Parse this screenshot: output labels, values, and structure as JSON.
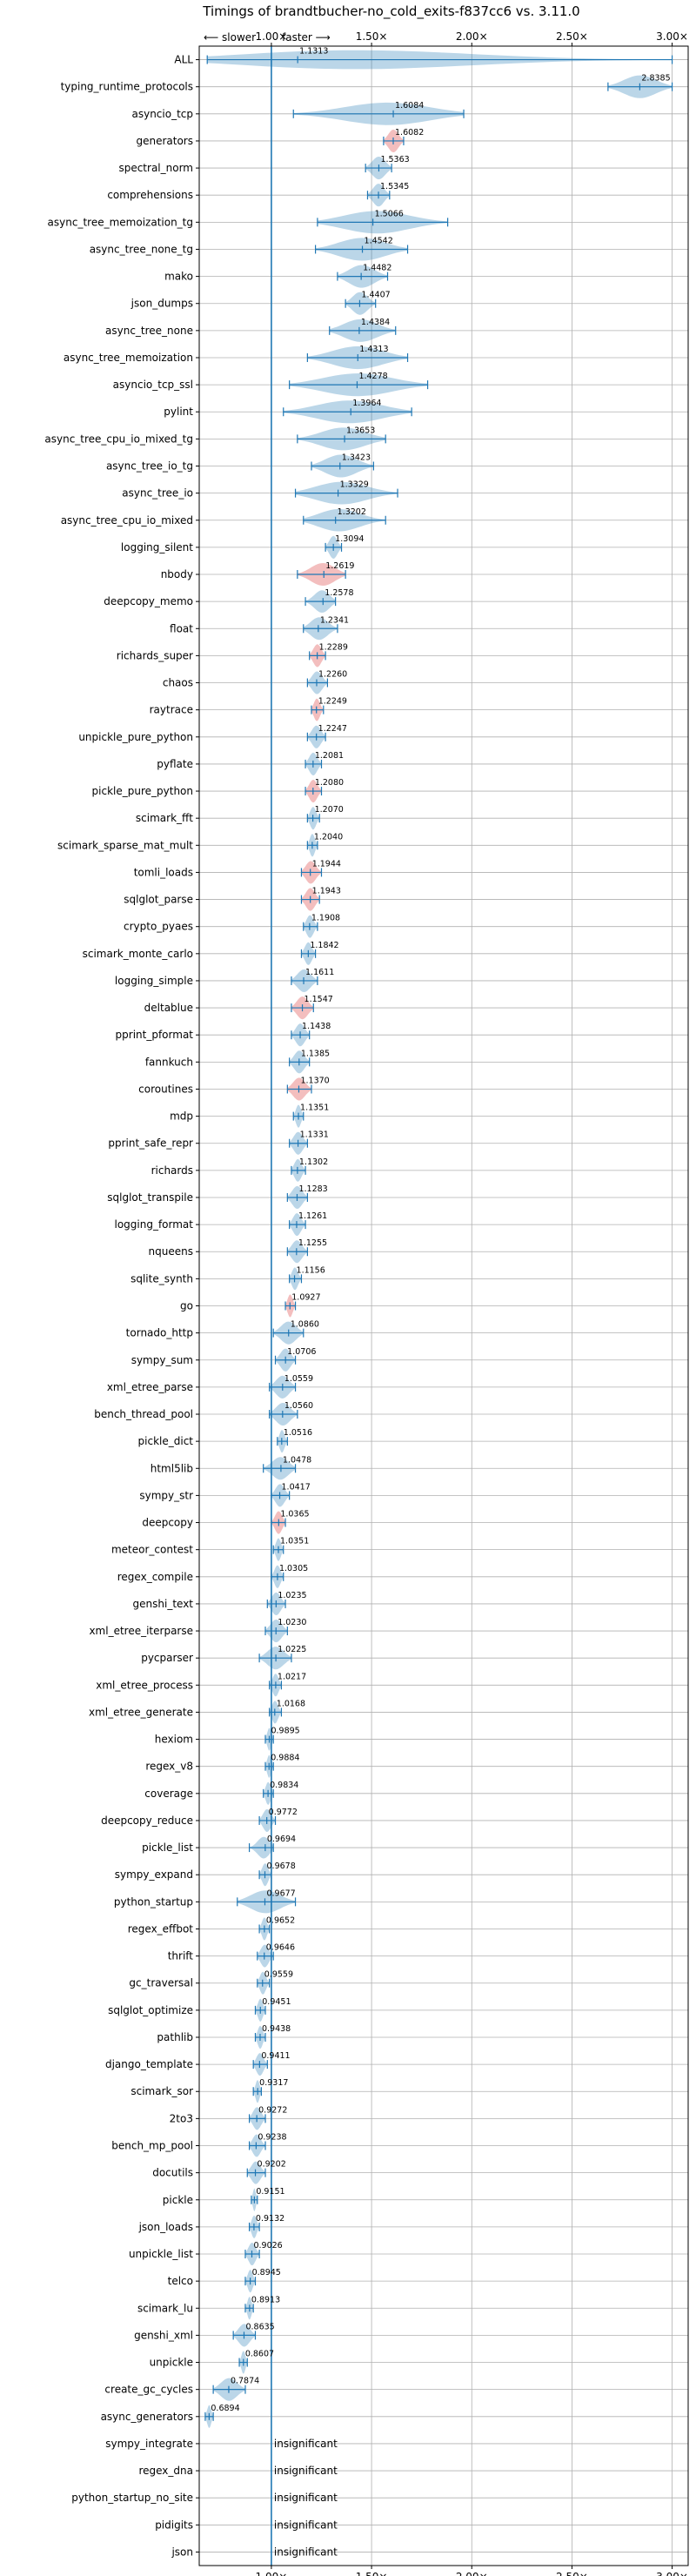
{
  "chart_data": {
    "type": "violin",
    "title": "Timings of brandtbucher-no_cold_exits-f837cc6 vs. 3.11.0",
    "direction_slower": "⟵ slower",
    "direction_faster": "faster ⟶",
    "xlim": [
      0.64,
      3.08
    ],
    "xticks": [
      1.0,
      1.5,
      2.0,
      2.5,
      3.0
    ],
    "xtick_labels": [
      "1.00×",
      "1.50×",
      "2.00×",
      "2.50×",
      "3.00×"
    ],
    "reference_line": 1.0,
    "grid": true,
    "colors": {
      "faster": "#1f77b4",
      "slower": "#d62728",
      "axis": "#000000",
      "grid": "#b0b0b0"
    },
    "insignificant_label": "insignificant",
    "benchmarks": [
      {
        "name": "ALL",
        "value": 1.1313,
        "min": 0.68,
        "max": 3.0,
        "label": "1.1313",
        "slower": false
      },
      {
        "name": "typing_runtime_protocols",
        "value": 2.8385,
        "min": 2.68,
        "max": 3.0,
        "label": "2.8385",
        "slower": false
      },
      {
        "name": "asyncio_tcp",
        "value": 1.6084,
        "min": 1.11,
        "max": 1.96,
        "label": "1.6084",
        "slower": false
      },
      {
        "name": "generators",
        "value": 1.6082,
        "min": 1.56,
        "max": 1.66,
        "label": "1.6082",
        "slower": true
      },
      {
        "name": "spectral_norm",
        "value": 1.5363,
        "min": 1.47,
        "max": 1.6,
        "label": "1.5363",
        "slower": false
      },
      {
        "name": "comprehensions",
        "value": 1.5345,
        "min": 1.48,
        "max": 1.59,
        "label": "1.5345",
        "slower": false
      },
      {
        "name": "async_tree_memoization_tg",
        "value": 1.5066,
        "min": 1.23,
        "max": 1.88,
        "label": "1.5066",
        "slower": false
      },
      {
        "name": "async_tree_none_tg",
        "value": 1.4542,
        "min": 1.22,
        "max": 1.68,
        "label": "1.4542",
        "slower": false
      },
      {
        "name": "mako",
        "value": 1.4482,
        "min": 1.33,
        "max": 1.58,
        "label": "1.4482",
        "slower": false
      },
      {
        "name": "json_dumps",
        "value": 1.4407,
        "min": 1.37,
        "max": 1.52,
        "label": "1.4407",
        "slower": false
      },
      {
        "name": "async_tree_none",
        "value": 1.4384,
        "min": 1.29,
        "max": 1.62,
        "label": "1.4384",
        "slower": false
      },
      {
        "name": "async_tree_memoization",
        "value": 1.4313,
        "min": 1.18,
        "max": 1.68,
        "label": "1.4313",
        "slower": false
      },
      {
        "name": "asyncio_tcp_ssl",
        "value": 1.4278,
        "min": 1.09,
        "max": 1.78,
        "label": "1.4278",
        "slower": false
      },
      {
        "name": "pylint",
        "value": 1.3964,
        "min": 1.06,
        "max": 1.7,
        "label": "1.3964",
        "slower": false
      },
      {
        "name": "async_tree_cpu_io_mixed_tg",
        "value": 1.3653,
        "min": 1.13,
        "max": 1.57,
        "label": "1.3653",
        "slower": false
      },
      {
        "name": "async_tree_io_tg",
        "value": 1.3423,
        "min": 1.2,
        "max": 1.51,
        "label": "1.3423",
        "slower": false
      },
      {
        "name": "async_tree_io",
        "value": 1.3329,
        "min": 1.12,
        "max": 1.63,
        "label": "1.3329",
        "slower": false
      },
      {
        "name": "async_tree_cpu_io_mixed",
        "value": 1.3202,
        "min": 1.16,
        "max": 1.57,
        "label": "1.3202",
        "slower": false
      },
      {
        "name": "logging_silent",
        "value": 1.3094,
        "min": 1.27,
        "max": 1.35,
        "label": "1.3094",
        "slower": false
      },
      {
        "name": "nbody",
        "value": 1.2619,
        "min": 1.13,
        "max": 1.37,
        "label": "1.2619",
        "slower": true
      },
      {
        "name": "deepcopy_memo",
        "value": 1.2578,
        "min": 1.17,
        "max": 1.32,
        "label": "1.2578",
        "slower": false
      },
      {
        "name": "float",
        "value": 1.2341,
        "min": 1.16,
        "max": 1.33,
        "label": "1.2341",
        "slower": false
      },
      {
        "name": "richards_super",
        "value": 1.2289,
        "min": 1.19,
        "max": 1.27,
        "label": "1.2289",
        "slower": true
      },
      {
        "name": "chaos",
        "value": 1.226,
        "min": 1.18,
        "max": 1.28,
        "label": "1.2260",
        "slower": false
      },
      {
        "name": "raytrace",
        "value": 1.2249,
        "min": 1.2,
        "max": 1.26,
        "label": "1.2249",
        "slower": true
      },
      {
        "name": "unpickle_pure_python",
        "value": 1.2247,
        "min": 1.18,
        "max": 1.27,
        "label": "1.2247",
        "slower": false
      },
      {
        "name": "pyflate",
        "value": 1.2081,
        "min": 1.17,
        "max": 1.25,
        "label": "1.2081",
        "slower": false
      },
      {
        "name": "pickle_pure_python",
        "value": 1.208,
        "min": 1.17,
        "max": 1.25,
        "label": "1.2080",
        "slower": true
      },
      {
        "name": "scimark_fft",
        "value": 1.207,
        "min": 1.18,
        "max": 1.24,
        "label": "1.2070",
        "slower": false
      },
      {
        "name": "scimark_sparse_mat_mult",
        "value": 1.204,
        "min": 1.18,
        "max": 1.23,
        "label": "1.2040",
        "slower": false
      },
      {
        "name": "tomli_loads",
        "value": 1.1944,
        "min": 1.15,
        "max": 1.25,
        "label": "1.1944",
        "slower": true
      },
      {
        "name": "sqlglot_parse",
        "value": 1.1943,
        "min": 1.15,
        "max": 1.24,
        "label": "1.1943",
        "slower": true
      },
      {
        "name": "crypto_pyaes",
        "value": 1.1908,
        "min": 1.16,
        "max": 1.23,
        "label": "1.1908",
        "slower": false
      },
      {
        "name": "scimark_monte_carlo",
        "value": 1.1842,
        "min": 1.15,
        "max": 1.22,
        "label": "1.1842",
        "slower": false
      },
      {
        "name": "logging_simple",
        "value": 1.1611,
        "min": 1.1,
        "max": 1.23,
        "label": "1.1611",
        "slower": false
      },
      {
        "name": "deltablue",
        "value": 1.1547,
        "min": 1.1,
        "max": 1.21,
        "label": "1.1547",
        "slower": true
      },
      {
        "name": "pprint_pformat",
        "value": 1.1438,
        "min": 1.1,
        "max": 1.19,
        "label": "1.1438",
        "slower": false
      },
      {
        "name": "fannkuch",
        "value": 1.1385,
        "min": 1.09,
        "max": 1.19,
        "label": "1.1385",
        "slower": false
      },
      {
        "name": "coroutines",
        "value": 1.137,
        "min": 1.08,
        "max": 1.2,
        "label": "1.1370",
        "slower": true
      },
      {
        "name": "mdp",
        "value": 1.1351,
        "min": 1.11,
        "max": 1.16,
        "label": "1.1351",
        "slower": false
      },
      {
        "name": "pprint_safe_repr",
        "value": 1.1331,
        "min": 1.09,
        "max": 1.18,
        "label": "1.1331",
        "slower": false
      },
      {
        "name": "richards",
        "value": 1.1302,
        "min": 1.1,
        "max": 1.17,
        "label": "1.1302",
        "slower": false
      },
      {
        "name": "sqlglot_transpile",
        "value": 1.1283,
        "min": 1.08,
        "max": 1.18,
        "label": "1.1283",
        "slower": false
      },
      {
        "name": "logging_format",
        "value": 1.1261,
        "min": 1.09,
        "max": 1.17,
        "label": "1.1261",
        "slower": false
      },
      {
        "name": "nqueens",
        "value": 1.1255,
        "min": 1.08,
        "max": 1.18,
        "label": "1.1255",
        "slower": false
      },
      {
        "name": "sqlite_synth",
        "value": 1.1156,
        "min": 1.09,
        "max": 1.15,
        "label": "1.1156",
        "slower": false
      },
      {
        "name": "go",
        "value": 1.0927,
        "min": 1.07,
        "max": 1.12,
        "label": "1.0927",
        "slower": true
      },
      {
        "name": "tornado_http",
        "value": 1.086,
        "min": 1.01,
        "max": 1.16,
        "label": "1.0860",
        "slower": false
      },
      {
        "name": "sympy_sum",
        "value": 1.0706,
        "min": 1.02,
        "max": 1.12,
        "label": "1.0706",
        "slower": false
      },
      {
        "name": "xml_etree_parse",
        "value": 1.0559,
        "min": 0.99,
        "max": 1.12,
        "label": "1.0559",
        "slower": false
      },
      {
        "name": "bench_thread_pool",
        "value": 1.056,
        "min": 0.99,
        "max": 1.13,
        "label": "1.0560",
        "slower": false
      },
      {
        "name": "pickle_dict",
        "value": 1.0516,
        "min": 1.03,
        "max": 1.08,
        "label": "1.0516",
        "slower": false
      },
      {
        "name": "html5lib",
        "value": 1.0478,
        "min": 0.96,
        "max": 1.12,
        "label": "1.0478",
        "slower": false
      },
      {
        "name": "sympy_str",
        "value": 1.0417,
        "min": 1.0,
        "max": 1.09,
        "label": "1.0417",
        "slower": false
      },
      {
        "name": "deepcopy",
        "value": 1.0365,
        "min": 1.0,
        "max": 1.07,
        "label": "1.0365",
        "slower": true
      },
      {
        "name": "meteor_contest",
        "value": 1.0351,
        "min": 1.01,
        "max": 1.06,
        "label": "1.0351",
        "slower": false
      },
      {
        "name": "regex_compile",
        "value": 1.0305,
        "min": 1.0,
        "max": 1.06,
        "label": "1.0305",
        "slower": false
      },
      {
        "name": "genshi_text",
        "value": 1.0235,
        "min": 0.98,
        "max": 1.07,
        "label": "1.0235",
        "slower": false
      },
      {
        "name": "xml_etree_iterparse",
        "value": 1.023,
        "min": 0.97,
        "max": 1.08,
        "label": "1.0230",
        "slower": false
      },
      {
        "name": "pycparser",
        "value": 1.0225,
        "min": 0.94,
        "max": 1.1,
        "label": "1.0225",
        "slower": false
      },
      {
        "name": "xml_etree_process",
        "value": 1.0217,
        "min": 0.99,
        "max": 1.05,
        "label": "1.0217",
        "slower": false
      },
      {
        "name": "xml_etree_generate",
        "value": 1.0168,
        "min": 0.99,
        "max": 1.05,
        "label": "1.0168",
        "slower": false
      },
      {
        "name": "hexiom",
        "value": 0.9895,
        "min": 0.97,
        "max": 1.01,
        "label": "0.9895",
        "slower": false
      },
      {
        "name": "regex_v8",
        "value": 0.9884,
        "min": 0.97,
        "max": 1.01,
        "label": "0.9884",
        "slower": false
      },
      {
        "name": "coverage",
        "value": 0.9834,
        "min": 0.96,
        "max": 1.01,
        "label": "0.9834",
        "slower": false
      },
      {
        "name": "deepcopy_reduce",
        "value": 0.9772,
        "min": 0.94,
        "max": 1.02,
        "label": "0.9772",
        "slower": false
      },
      {
        "name": "pickle_list",
        "value": 0.9694,
        "min": 0.89,
        "max": 1.01,
        "label": "0.9694",
        "slower": false
      },
      {
        "name": "sympy_expand",
        "value": 0.9678,
        "min": 0.94,
        "max": 1.0,
        "label": "0.9678",
        "slower": false
      },
      {
        "name": "python_startup",
        "value": 0.9677,
        "min": 0.83,
        "max": 1.12,
        "label": "0.9677",
        "slower": false
      },
      {
        "name": "regex_effbot",
        "value": 0.9652,
        "min": 0.94,
        "max": 0.99,
        "label": "0.9652",
        "slower": false
      },
      {
        "name": "thrift",
        "value": 0.9646,
        "min": 0.93,
        "max": 1.01,
        "label": "0.9646",
        "slower": false
      },
      {
        "name": "gc_traversal",
        "value": 0.9559,
        "min": 0.93,
        "max": 0.99,
        "label": "0.9559",
        "slower": false
      },
      {
        "name": "sqlglot_optimize",
        "value": 0.9451,
        "min": 0.92,
        "max": 0.97,
        "label": "0.9451",
        "slower": false
      },
      {
        "name": "pathlib",
        "value": 0.9438,
        "min": 0.92,
        "max": 0.97,
        "label": "0.9438",
        "slower": false
      },
      {
        "name": "django_template",
        "value": 0.9411,
        "min": 0.91,
        "max": 0.98,
        "label": "0.9411",
        "slower": false
      },
      {
        "name": "scimark_sor",
        "value": 0.9317,
        "min": 0.91,
        "max": 0.95,
        "label": "0.9317",
        "slower": false
      },
      {
        "name": "2to3",
        "value": 0.9272,
        "min": 0.89,
        "max": 0.97,
        "label": "0.9272",
        "slower": false
      },
      {
        "name": "bench_mp_pool",
        "value": 0.9238,
        "min": 0.89,
        "max": 0.97,
        "label": "0.9238",
        "slower": false
      },
      {
        "name": "docutils",
        "value": 0.9202,
        "min": 0.88,
        "max": 0.97,
        "label": "0.9202",
        "slower": false
      },
      {
        "name": "pickle",
        "value": 0.9151,
        "min": 0.9,
        "max": 0.93,
        "label": "0.9151",
        "slower": false
      },
      {
        "name": "json_loads",
        "value": 0.9132,
        "min": 0.89,
        "max": 0.94,
        "label": "0.9132",
        "slower": false
      },
      {
        "name": "unpickle_list",
        "value": 0.9026,
        "min": 0.87,
        "max": 0.94,
        "label": "0.9026",
        "slower": false
      },
      {
        "name": "telco",
        "value": 0.8945,
        "min": 0.87,
        "max": 0.92,
        "label": "0.8945",
        "slower": false
      },
      {
        "name": "scimark_lu",
        "value": 0.8913,
        "min": 0.87,
        "max": 0.91,
        "label": "0.8913",
        "slower": false
      },
      {
        "name": "genshi_xml",
        "value": 0.8635,
        "min": 0.81,
        "max": 0.92,
        "label": "0.8635",
        "slower": false
      },
      {
        "name": "unpickle",
        "value": 0.8607,
        "min": 0.84,
        "max": 0.88,
        "label": "0.8607",
        "slower": false
      },
      {
        "name": "create_gc_cycles",
        "value": 0.7874,
        "min": 0.71,
        "max": 0.87,
        "label": "0.7874",
        "slower": false
      },
      {
        "name": "async_generators",
        "value": 0.6894,
        "min": 0.67,
        "max": 0.71,
        "label": "0.6894",
        "slower": false
      },
      {
        "name": "sympy_integrate",
        "value": null,
        "min": null,
        "max": null,
        "label": "",
        "slower": false
      },
      {
        "name": "regex_dna",
        "value": null,
        "min": null,
        "max": null,
        "label": "",
        "slower": false
      },
      {
        "name": "python_startup_no_site",
        "value": null,
        "min": null,
        "max": null,
        "label": "",
        "slower": false
      },
      {
        "name": "pidigits",
        "value": null,
        "min": null,
        "max": null,
        "label": "",
        "slower": false
      },
      {
        "name": "json",
        "value": null,
        "min": null,
        "max": null,
        "label": "",
        "slower": false
      }
    ]
  }
}
